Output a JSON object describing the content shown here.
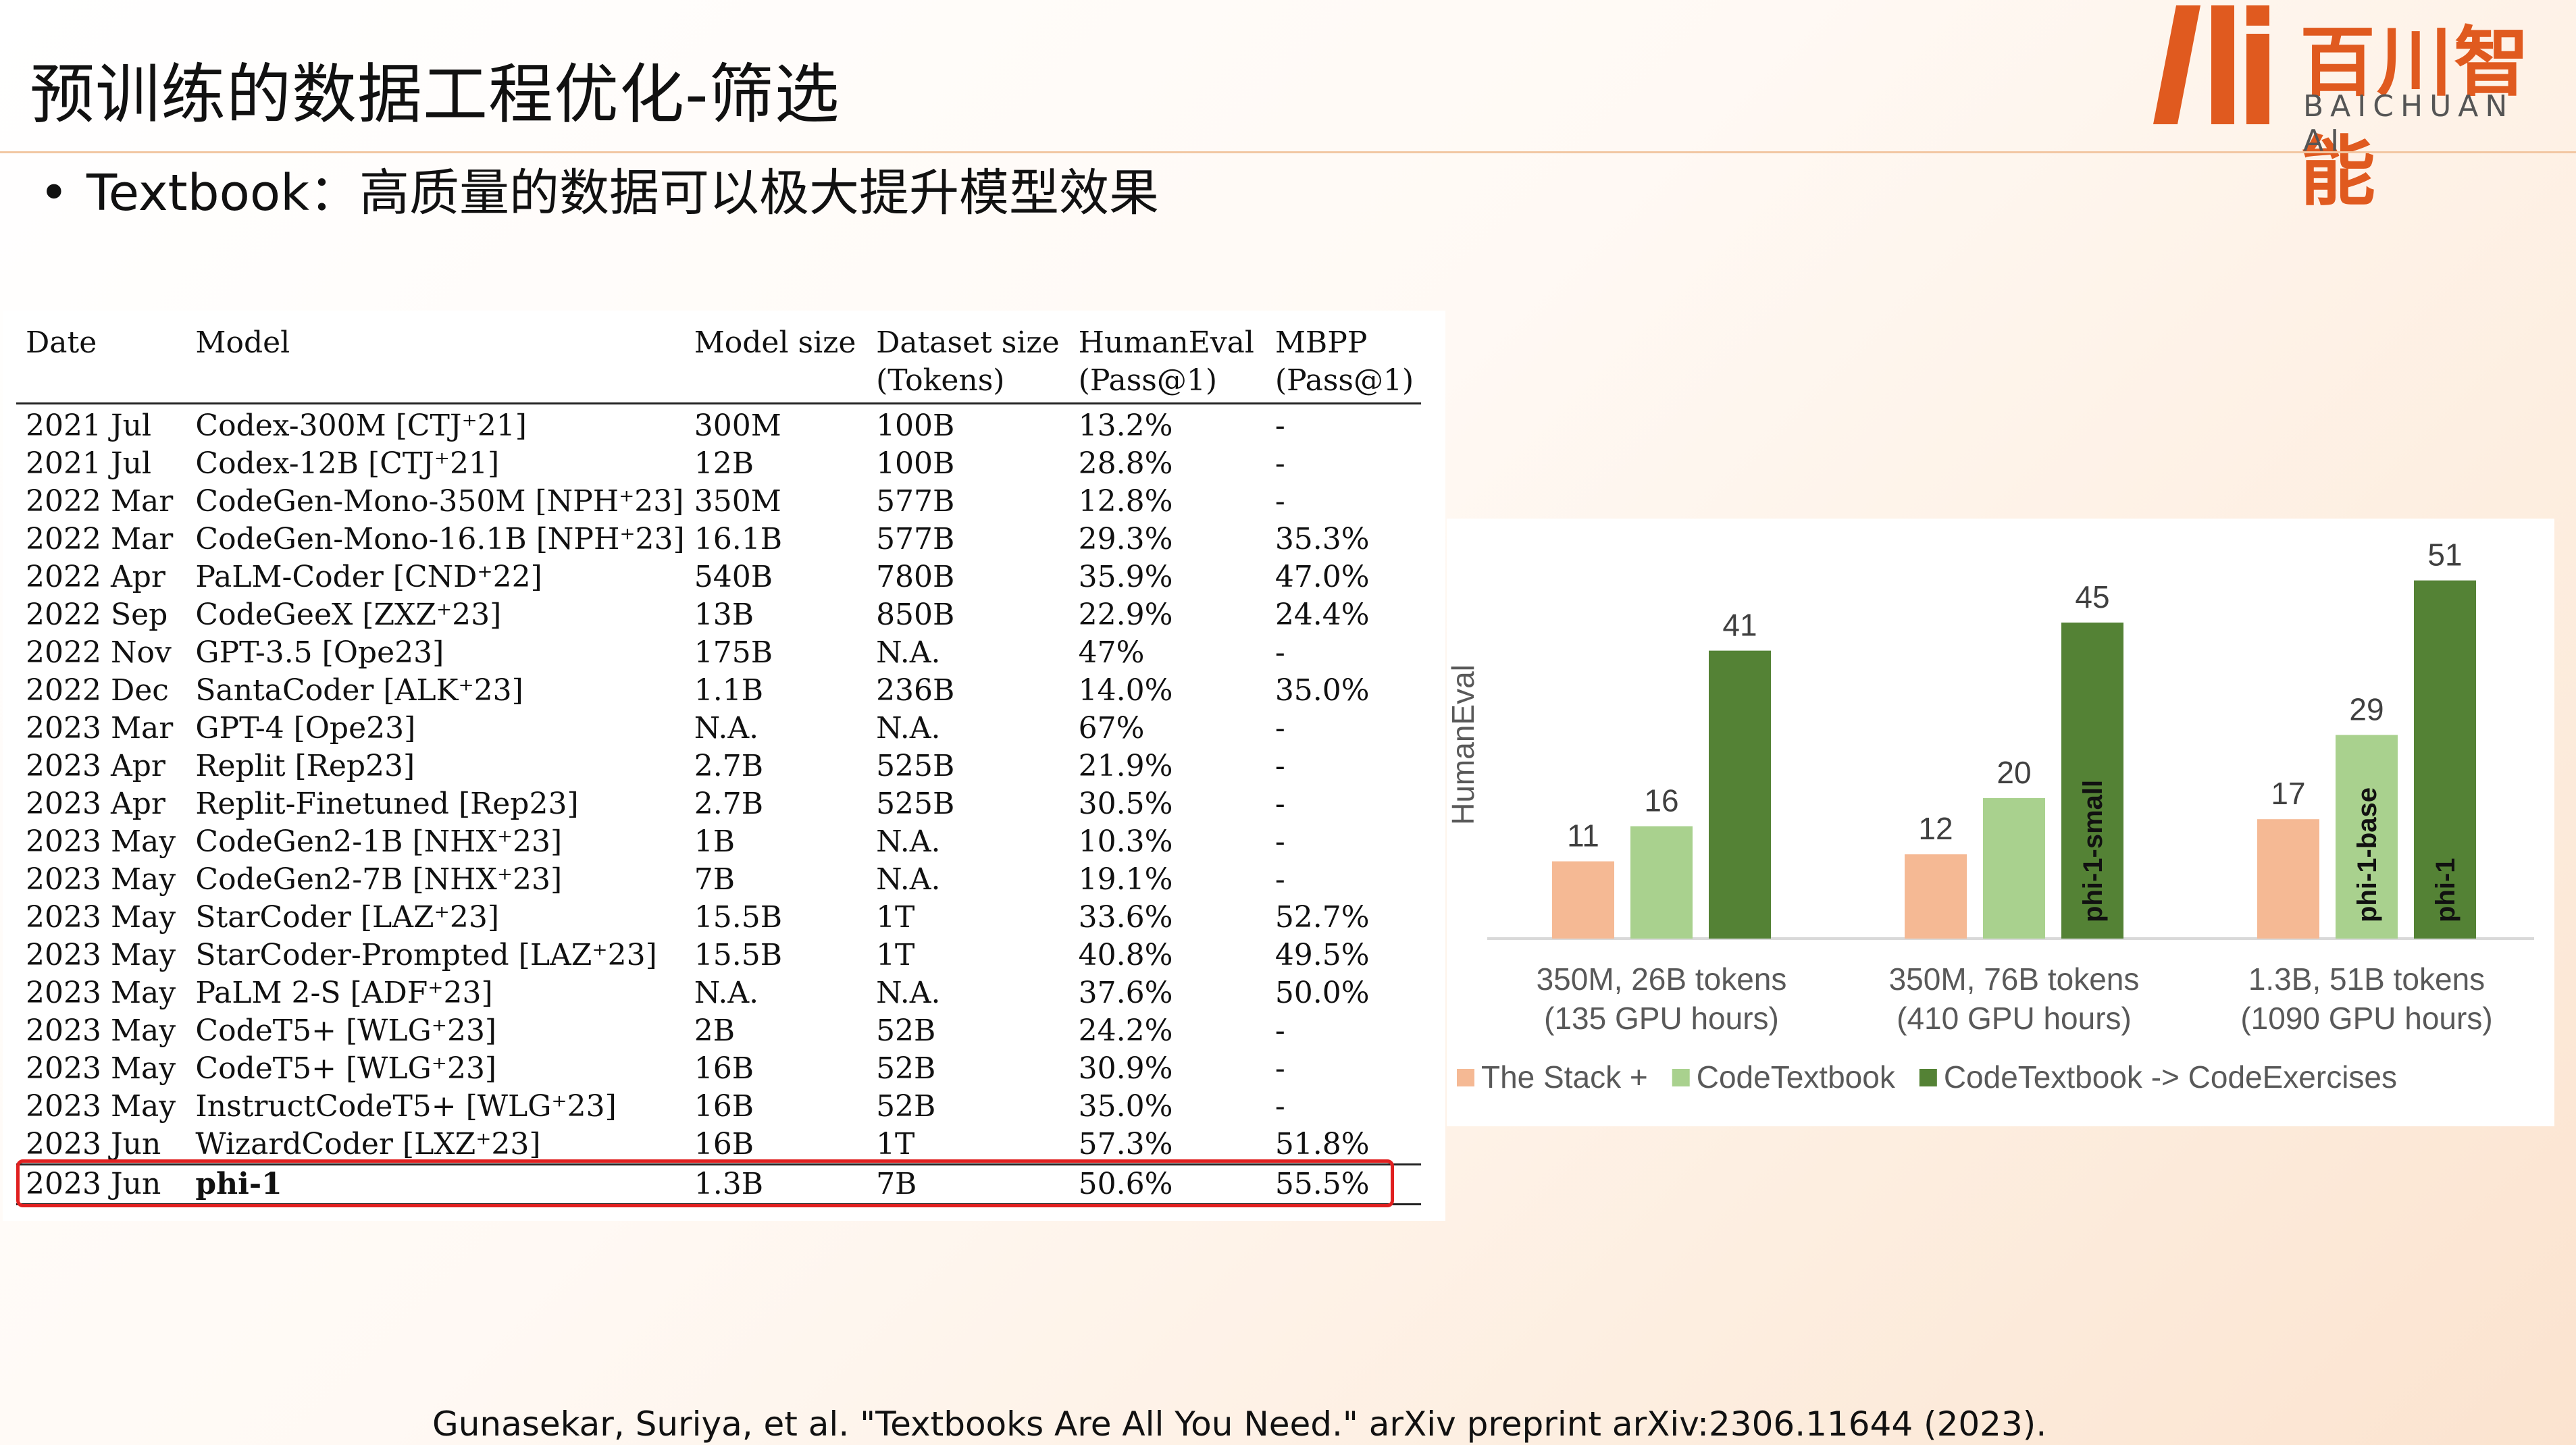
{
  "slide": {
    "title": "预训练的数据工程优化-筛选",
    "bullet": "Textbook：高质量的数据可以极大提升模型效果",
    "citation": "Gunasekar, Suriya, et al. \"Textbooks Are All You Need.\" arXiv preprint arXiv:2306.11644 (2023)."
  },
  "logo": {
    "cn": "百川智能",
    "en": "BAICHUAN AI",
    "color": "#e05a1f"
  },
  "table": {
    "headers_top": [
      "Date",
      "Model",
      "Model size",
      "Dataset size",
      "HumanEval",
      "MBPP"
    ],
    "headers_bottom": [
      "",
      "",
      "",
      "(Tokens)",
      "(Pass@1)",
      "(Pass@1)"
    ],
    "rows": [
      [
        "2021 Jul",
        "Codex-300M [CTJ⁺21]",
        "300M",
        "100B",
        "13.2%",
        "-"
      ],
      [
        "2021 Jul",
        "Codex-12B [CTJ⁺21]",
        "12B",
        "100B",
        "28.8%",
        "-"
      ],
      [
        "2022 Mar",
        "CodeGen-Mono-350M [NPH⁺23]",
        "350M",
        "577B",
        "12.8%",
        "-"
      ],
      [
        "2022 Mar",
        "CodeGen-Mono-16.1B [NPH⁺23]",
        "16.1B",
        "577B",
        "29.3%",
        "35.3%"
      ],
      [
        "2022 Apr",
        "PaLM-Coder [CND⁺22]",
        "540B",
        "780B",
        "35.9%",
        "47.0%"
      ],
      [
        "2022 Sep",
        "CodeGeeX [ZXZ⁺23]",
        "13B",
        "850B",
        "22.9%",
        "24.4%"
      ],
      [
        "2022 Nov",
        "GPT-3.5 [Ope23]",
        "175B",
        "N.A.",
        "47%",
        "-"
      ],
      [
        "2022 Dec",
        "SantaCoder [ALK⁺23]",
        "1.1B",
        "236B",
        "14.0%",
        "35.0%"
      ],
      [
        "2023 Mar",
        "GPT-4 [Ope23]",
        "N.A.",
        "N.A.",
        "67%",
        "-"
      ],
      [
        "2023 Apr",
        "Replit [Rep23]",
        "2.7B",
        "525B",
        "21.9%",
        "-"
      ],
      [
        "2023 Apr",
        "Replit-Finetuned [Rep23]",
        "2.7B",
        "525B",
        "30.5%",
        "-"
      ],
      [
        "2023 May",
        "CodeGen2-1B [NHX⁺23]",
        "1B",
        "N.A.",
        "10.3%",
        "-"
      ],
      [
        "2023 May",
        "CodeGen2-7B [NHX⁺23]",
        "7B",
        "N.A.",
        "19.1%",
        "-"
      ],
      [
        "2023 May",
        "StarCoder [LAZ⁺23]",
        "15.5B",
        "1T",
        "33.6%",
        "52.7%"
      ],
      [
        "2023 May",
        "StarCoder-Prompted [LAZ⁺23]",
        "15.5B",
        "1T",
        "40.8%",
        "49.5%"
      ],
      [
        "2023 May",
        "PaLM 2-S [ADF⁺23]",
        "N.A.",
        "N.A.",
        "37.6%",
        "50.0%"
      ],
      [
        "2023 May",
        "CodeT5+ [WLG⁺23]",
        "2B",
        "52B",
        "24.2%",
        "-"
      ],
      [
        "2023 May",
        "CodeT5+ [WLG⁺23]",
        "16B",
        "52B",
        "30.9%",
        "-"
      ],
      [
        "2023 May",
        "InstructCodeT5+ [WLG⁺23]",
        "16B",
        "52B",
        "35.0%",
        "-"
      ],
      [
        "2023 Jun",
        "WizardCoder [LXZ⁺23]",
        "16B",
        "1T",
        "57.3%",
        "51.8%"
      ]
    ],
    "highlight_row": [
      "2023 Jun",
      "phi-1",
      "1.3B",
      "7B",
      "50.6%",
      "55.5%"
    ],
    "highlight_color": "#e02020"
  },
  "chart_data": {
    "type": "bar",
    "ylabel": "HumanEval",
    "categories": [
      "350M, 26B tokens\n(135 GPU hours)",
      "350M, 76B tokens\n(410 GPU hours)",
      "1.3B, 51B tokens\n(1090 GPU hours)"
    ],
    "category_lines": [
      [
        "350M, 26B tokens",
        "(135 GPU hours)"
      ],
      [
        "350M, 76B tokens",
        "(410 GPU hours)"
      ],
      [
        "1.3B, 51B tokens",
        "(1090 GPU hours)"
      ]
    ],
    "series": [
      {
        "name": "The Stack +",
        "color": "#f5b994",
        "values": [
          11,
          12,
          17
        ]
      },
      {
        "name": "CodeTextbook",
        "color": "#a9d18e",
        "values": [
          16,
          20,
          29
        ]
      },
      {
        "name": "CodeTextbook -> CodeExercises",
        "color": "#548235",
        "values": [
          41,
          45,
          51
        ]
      }
    ],
    "bar_labels": [
      [
        "",
        "",
        ""
      ],
      [
        "",
        "",
        "phi-1-base"
      ],
      [
        "",
        "phi-1-small",
        "phi-1"
      ]
    ],
    "ylim": [
      0,
      55
    ],
    "grid": false,
    "legend_position": "bottom"
  }
}
